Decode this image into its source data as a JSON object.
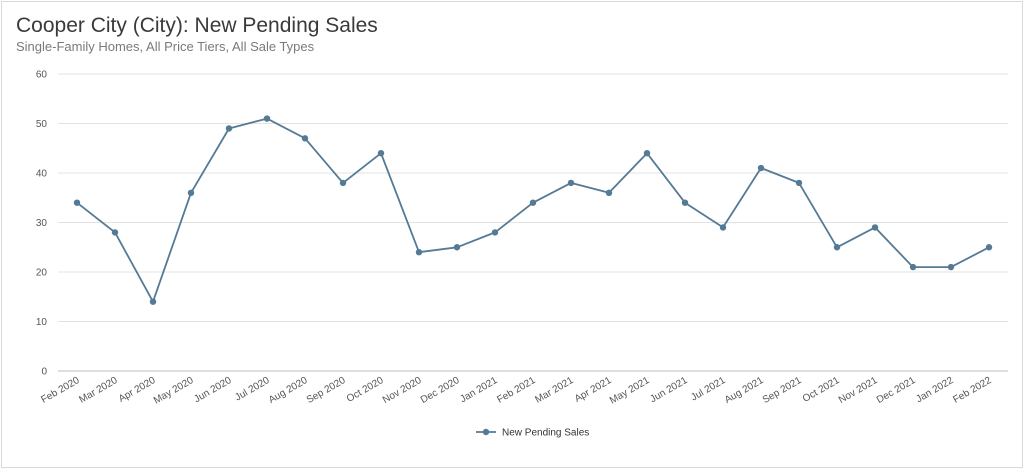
{
  "header": {
    "title": "Cooper City (City): New Pending Sales",
    "subtitle": "Single-Family Homes, All Price Tiers, All Sale Types"
  },
  "chart_data": {
    "type": "line",
    "title": "Cooper City (City): New Pending Sales",
    "subtitle": "Single-Family Homes, All Price Tiers, All Sale Types",
    "xlabel": "",
    "ylabel": "",
    "ylim": [
      0,
      60
    ],
    "yticks": [
      0,
      10,
      20,
      30,
      40,
      50,
      60
    ],
    "grid": true,
    "legend_position": "bottom-center",
    "categories": [
      "Feb 2020",
      "Mar 2020",
      "Apr 2020",
      "May 2020",
      "Jun 2020",
      "Jul 2020",
      "Aug 2020",
      "Sep 2020",
      "Oct 2020",
      "Nov 2020",
      "Dec 2020",
      "Jan 2021",
      "Feb 2021",
      "Mar 2021",
      "Apr 2021",
      "May 2021",
      "Jun 2021",
      "Jul 2021",
      "Aug 2021",
      "Sep 2021",
      "Oct 2021",
      "Nov 2021",
      "Dec 2021",
      "Jan 2022",
      "Feb 2022"
    ],
    "series": [
      {
        "name": "New Pending Sales",
        "color": "#557a95",
        "values": [
          34,
          28,
          14,
          36,
          49,
          51,
          47,
          38,
          44,
          24,
          25,
          28,
          34,
          38,
          36,
          44,
          34,
          29,
          41,
          38,
          25,
          29,
          21,
          21,
          25
        ]
      }
    ]
  }
}
